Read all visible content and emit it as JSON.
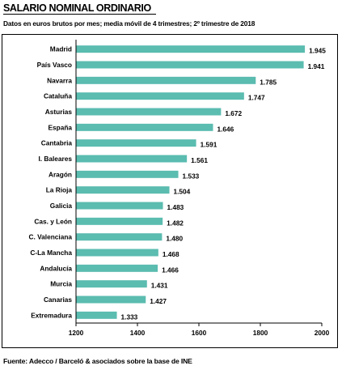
{
  "header": {
    "title": "SALARIO NOMINAL ORDINARIO",
    "subtitle": "Datos en euros brutos por mes; media móvil de 4 trimestres; 2º trimestre de 2018"
  },
  "footer": {
    "source": "Fuente: Adecco / Barceló & asociados sobre la base de INE"
  },
  "colors": {
    "bar": "#5bbcb0",
    "axis": "#000000",
    "text": "#000000"
  },
  "chart_data": {
    "type": "bar",
    "orientation": "horizontal",
    "title": "SALARIO NOMINAL ORDINARIO",
    "subtitle": "Datos en euros brutos por mes; media móvil de 4 trimestres; 2º trimestre de 2018",
    "xlabel": "",
    "ylabel": "",
    "xlim": [
      1200,
      2000
    ],
    "ticks": [
      1200,
      1400,
      1600,
      1800,
      2000
    ],
    "tick_labels": [
      "1200",
      "1400",
      "1600",
      "1800",
      "2000"
    ],
    "grid": false,
    "categories": [
      "Madrid",
      "País Vasco",
      "Navarra",
      "Cataluña",
      "Asturias",
      "España",
      "Cantabria",
      "I. Baleares",
      "Aragón",
      "La Rioja",
      "Galicia",
      "Cas. y León",
      "C. Valenciana",
      "C-La Mancha",
      "Andalucía",
      "Murcia",
      "Canarias",
      "Extremadura"
    ],
    "values": [
      1945,
      1941,
      1785,
      1747,
      1672,
      1646,
      1591,
      1561,
      1533,
      1504,
      1483,
      1482,
      1480,
      1468,
      1466,
      1431,
      1427,
      1333
    ],
    "value_labels": [
      "1.945",
      "1.941",
      "1.785",
      "1.747",
      "1.672",
      "1.646",
      "1.591",
      "1.561",
      "1.533",
      "1.504",
      "1.483",
      "1.482",
      "1.480",
      "1.468",
      "1.466",
      "1.431",
      "1.427",
      "1.333"
    ]
  }
}
